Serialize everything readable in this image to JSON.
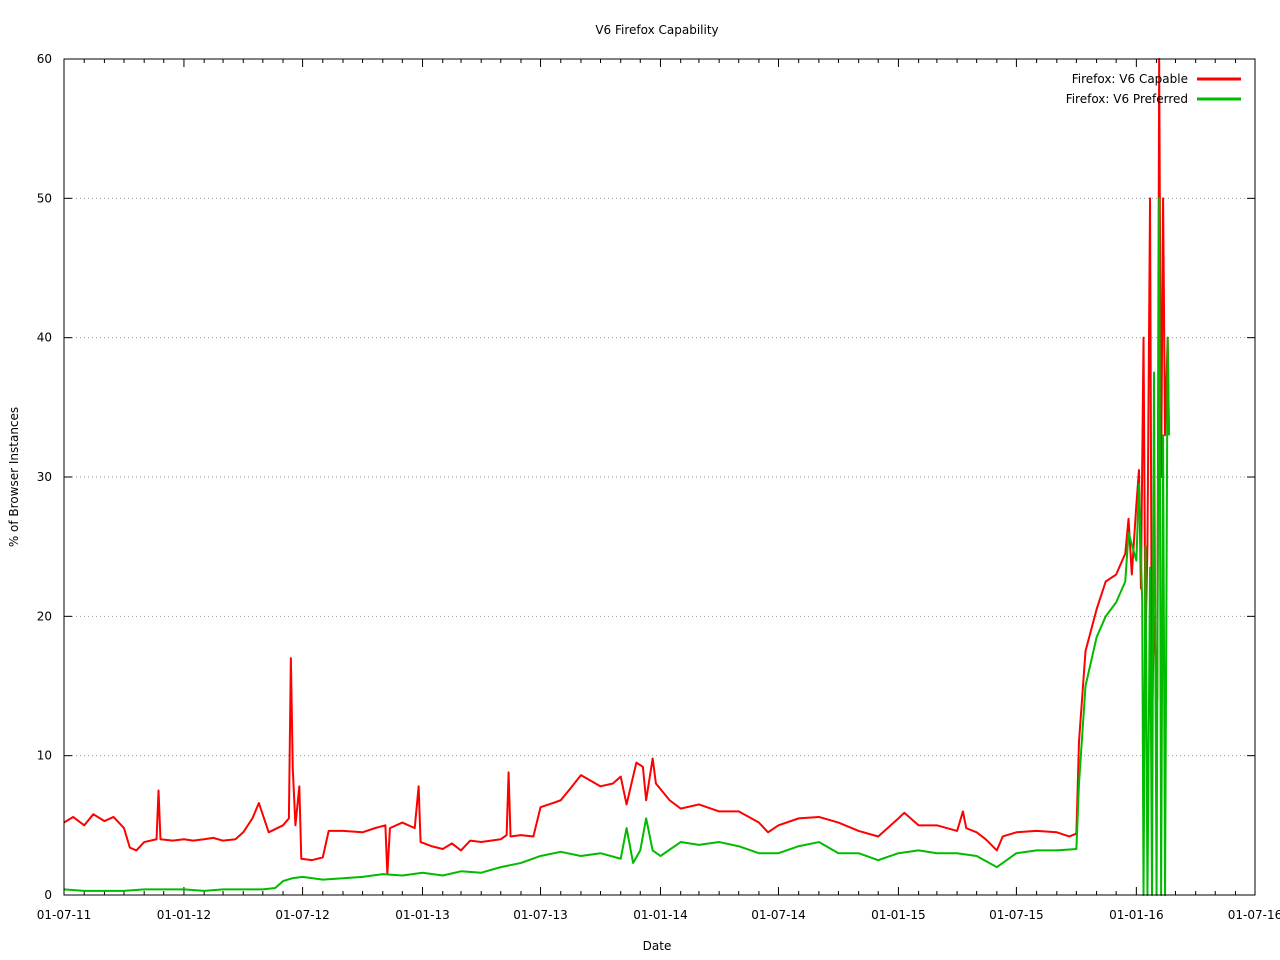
{
  "chart_data": {
    "type": "line",
    "title": "V6 Firefox Capability",
    "xlabel": "Date",
    "ylabel": "% of Browser Instances",
    "x_ticks": [
      "01-07-11",
      "01-01-12",
      "01-07-12",
      "01-01-13",
      "01-07-13",
      "01-01-14",
      "01-07-14",
      "01-01-15",
      "01-07-15",
      "01-01-16",
      "01-07-16"
    ],
    "xlim": [
      "2011-07-01",
      "2016-07-01"
    ],
    "ylim": [
      0,
      60
    ],
    "y_ticks": [
      0,
      10,
      20,
      30,
      40,
      50,
      60
    ],
    "grid": "horizontal dotted",
    "legend_position": "top-right",
    "series": [
      {
        "name": "Firefox: V6 Capable",
        "color": "#ff0000",
        "points": [
          [
            "2011-07-01",
            5.2
          ],
          [
            "2011-07-15",
            5.6
          ],
          [
            "2011-08-01",
            5.0
          ],
          [
            "2011-08-15",
            5.8
          ],
          [
            "2011-09-01",
            5.3
          ],
          [
            "2011-09-15",
            5.6
          ],
          [
            "2011-10-01",
            4.8
          ],
          [
            "2011-10-10",
            3.4
          ],
          [
            "2011-10-20",
            3.2
          ],
          [
            "2011-11-01",
            3.8
          ],
          [
            "2011-11-20",
            4.0
          ],
          [
            "2011-11-23",
            7.5
          ],
          [
            "2011-11-26",
            4.0
          ],
          [
            "2011-12-15",
            3.9
          ],
          [
            "2012-01-01",
            4.0
          ],
          [
            "2012-01-15",
            3.9
          ],
          [
            "2012-02-01",
            4.0
          ],
          [
            "2012-02-15",
            4.1
          ],
          [
            "2012-03-01",
            3.9
          ],
          [
            "2012-03-20",
            4.0
          ],
          [
            "2012-04-01",
            4.5
          ],
          [
            "2012-04-15",
            5.5
          ],
          [
            "2012-04-25",
            6.6
          ],
          [
            "2012-05-10",
            4.5
          ],
          [
            "2012-06-01",
            5.0
          ],
          [
            "2012-06-10",
            5.5
          ],
          [
            "2012-06-13",
            17.0
          ],
          [
            "2012-06-16",
            9.0
          ],
          [
            "2012-06-20",
            5.0
          ],
          [
            "2012-06-26",
            7.8
          ],
          [
            "2012-06-29",
            2.6
          ],
          [
            "2012-07-15",
            2.5
          ],
          [
            "2012-08-01",
            2.7
          ],
          [
            "2012-08-10",
            4.6
          ],
          [
            "2012-09-01",
            4.6
          ],
          [
            "2012-10-01",
            4.5
          ],
          [
            "2012-10-20",
            4.8
          ],
          [
            "2012-11-05",
            5.0
          ],
          [
            "2012-11-08",
            1.5
          ],
          [
            "2012-11-12",
            4.8
          ],
          [
            "2012-12-01",
            5.2
          ],
          [
            "2012-12-20",
            4.8
          ],
          [
            "2012-12-26",
            7.8
          ],
          [
            "2012-12-29",
            3.8
          ],
          [
            "2013-01-15",
            3.5
          ],
          [
            "2013-02-01",
            3.3
          ],
          [
            "2013-02-15",
            3.7
          ],
          [
            "2013-03-01",
            3.2
          ],
          [
            "2013-03-15",
            3.9
          ],
          [
            "2013-04-01",
            3.8
          ],
          [
            "2013-05-01",
            4.0
          ],
          [
            "2013-05-10",
            4.3
          ],
          [
            "2013-05-13",
            8.8
          ],
          [
            "2013-05-16",
            4.2
          ],
          [
            "2013-06-01",
            4.3
          ],
          [
            "2013-06-20",
            4.2
          ],
          [
            "2013-07-01",
            6.3
          ],
          [
            "2013-07-20",
            6.6
          ],
          [
            "2013-08-01",
            6.8
          ],
          [
            "2013-08-15",
            7.6
          ],
          [
            "2013-09-01",
            8.6
          ],
          [
            "2013-10-01",
            7.8
          ],
          [
            "2013-10-20",
            8.0
          ],
          [
            "2013-11-01",
            8.5
          ],
          [
            "2013-11-10",
            6.5
          ],
          [
            "2013-11-25",
            9.5
          ],
          [
            "2013-12-05",
            9.2
          ],
          [
            "2013-12-10",
            6.8
          ],
          [
            "2013-12-20",
            9.8
          ],
          [
            "2013-12-25",
            8.0
          ],
          [
            "2014-01-15",
            6.8
          ],
          [
            "2014-02-01",
            6.2
          ],
          [
            "2014-03-01",
            6.5
          ],
          [
            "2014-04-01",
            6.0
          ],
          [
            "2014-05-01",
            6.0
          ],
          [
            "2014-06-01",
            5.2
          ],
          [
            "2014-06-15",
            4.5
          ],
          [
            "2014-07-01",
            5.0
          ],
          [
            "2014-08-01",
            5.5
          ],
          [
            "2014-09-01",
            5.6
          ],
          [
            "2014-10-01",
            5.2
          ],
          [
            "2014-11-01",
            4.6
          ],
          [
            "2014-12-01",
            4.2
          ],
          [
            "2015-01-01",
            5.5
          ],
          [
            "2015-01-10",
            5.9
          ],
          [
            "2015-02-01",
            5.0
          ],
          [
            "2015-03-01",
            5.0
          ],
          [
            "2015-04-01",
            4.6
          ],
          [
            "2015-04-10",
            6.0
          ],
          [
            "2015-04-15",
            4.8
          ],
          [
            "2015-05-01",
            4.5
          ],
          [
            "2015-05-15",
            4.0
          ],
          [
            "2015-06-01",
            3.2
          ],
          [
            "2015-06-10",
            4.2
          ],
          [
            "2015-07-01",
            4.5
          ],
          [
            "2015-08-01",
            4.6
          ],
          [
            "2015-09-01",
            4.5
          ],
          [
            "2015-09-20",
            4.2
          ],
          [
            "2015-10-01",
            4.4
          ],
          [
            "2015-10-05",
            11.0
          ],
          [
            "2015-10-15",
            17.5
          ],
          [
            "2015-11-01",
            20.5
          ],
          [
            "2015-11-15",
            22.5
          ],
          [
            "2015-12-01",
            23.0
          ],
          [
            "2015-12-15",
            24.5
          ],
          [
            "2015-12-20",
            27.0
          ],
          [
            "2015-12-25",
            23.0
          ],
          [
            "2016-01-01",
            28.0
          ],
          [
            "2016-01-05",
            30.5
          ],
          [
            "2016-01-08",
            22.0
          ],
          [
            "2016-01-12",
            40.0
          ],
          [
            "2016-01-15",
            18.0
          ],
          [
            "2016-01-18",
            25.0
          ],
          [
            "2016-01-22",
            50.0
          ],
          [
            "2016-01-25",
            12.0
          ],
          [
            "2016-01-28",
            20.0
          ],
          [
            "2016-02-02",
            14.0
          ],
          [
            "2016-02-05",
            60.0
          ],
          [
            "2016-02-08",
            30.0
          ],
          [
            "2016-02-11",
            50.0
          ],
          [
            "2016-02-14",
            33.0
          ],
          [
            "2016-02-18",
            40.0
          ],
          [
            "2016-02-20",
            33.0
          ]
        ]
      },
      {
        "name": "Firefox: V6 Preferred",
        "color": "#00bb00",
        "points": [
          [
            "2011-07-01",
            0.4
          ],
          [
            "2011-08-01",
            0.3
          ],
          [
            "2011-09-01",
            0.3
          ],
          [
            "2011-10-01",
            0.3
          ],
          [
            "2011-11-01",
            0.4
          ],
          [
            "2011-12-01",
            0.4
          ],
          [
            "2012-01-01",
            0.4
          ],
          [
            "2012-02-01",
            0.3
          ],
          [
            "2012-03-01",
            0.4
          ],
          [
            "2012-04-01",
            0.4
          ],
          [
            "2012-05-01",
            0.4
          ],
          [
            "2012-05-20",
            0.5
          ],
          [
            "2012-06-01",
            1.0
          ],
          [
            "2012-06-15",
            1.2
          ],
          [
            "2012-07-01",
            1.3
          ],
          [
            "2012-08-01",
            1.1
          ],
          [
            "2012-09-01",
            1.2
          ],
          [
            "2012-10-01",
            1.3
          ],
          [
            "2012-11-01",
            1.5
          ],
          [
            "2012-12-01",
            1.4
          ],
          [
            "2013-01-01",
            1.6
          ],
          [
            "2013-02-01",
            1.4
          ],
          [
            "2013-03-01",
            1.7
          ],
          [
            "2013-04-01",
            1.6
          ],
          [
            "2013-05-01",
            2.0
          ],
          [
            "2013-06-01",
            2.3
          ],
          [
            "2013-07-01",
            2.8
          ],
          [
            "2013-08-01",
            3.1
          ],
          [
            "2013-09-01",
            2.8
          ],
          [
            "2013-10-01",
            3.0
          ],
          [
            "2013-11-01",
            2.6
          ],
          [
            "2013-11-10",
            4.8
          ],
          [
            "2013-11-20",
            2.3
          ],
          [
            "2013-12-01",
            3.2
          ],
          [
            "2013-12-10",
            5.5
          ],
          [
            "2013-12-20",
            3.2
          ],
          [
            "2014-01-01",
            2.8
          ],
          [
            "2014-02-01",
            3.8
          ],
          [
            "2014-03-01",
            3.6
          ],
          [
            "2014-04-01",
            3.8
          ],
          [
            "2014-05-01",
            3.5
          ],
          [
            "2014-06-01",
            3.0
          ],
          [
            "2014-07-01",
            3.0
          ],
          [
            "2014-08-01",
            3.5
          ],
          [
            "2014-09-01",
            3.8
          ],
          [
            "2014-10-01",
            3.0
          ],
          [
            "2014-11-01",
            3.0
          ],
          [
            "2014-12-01",
            2.5
          ],
          [
            "2015-01-01",
            3.0
          ],
          [
            "2015-02-01",
            3.2
          ],
          [
            "2015-03-01",
            3.0
          ],
          [
            "2015-04-01",
            3.0
          ],
          [
            "2015-05-01",
            2.8
          ],
          [
            "2015-06-01",
            2.0
          ],
          [
            "2015-07-01",
            3.0
          ],
          [
            "2015-08-01",
            3.2
          ],
          [
            "2015-09-01",
            3.2
          ],
          [
            "2015-10-01",
            3.3
          ],
          [
            "2015-10-05",
            8.0
          ],
          [
            "2015-10-15",
            15.0
          ],
          [
            "2015-11-01",
            18.5
          ],
          [
            "2015-11-15",
            20.0
          ],
          [
            "2015-12-01",
            21.0
          ],
          [
            "2015-12-15",
            22.5
          ],
          [
            "2015-12-20",
            26.0
          ],
          [
            "2016-01-01",
            24.0
          ],
          [
            "2016-01-05",
            29.5
          ],
          [
            "2016-01-10",
            21.0
          ],
          [
            "2016-01-12",
            0.0
          ],
          [
            "2016-01-15",
            25.0
          ],
          [
            "2016-01-18",
            0.0
          ],
          [
            "2016-01-22",
            23.5
          ],
          [
            "2016-01-25",
            0.0
          ],
          [
            "2016-01-28",
            37.5
          ],
          [
            "2016-02-01",
            0.0
          ],
          [
            "2016-02-05",
            50.0
          ],
          [
            "2016-02-08",
            0.0
          ],
          [
            "2016-02-11",
            33.0
          ],
          [
            "2016-02-14",
            0.0
          ],
          [
            "2016-02-18",
            40.0
          ],
          [
            "2016-02-20",
            33.0
          ]
        ]
      }
    ]
  }
}
